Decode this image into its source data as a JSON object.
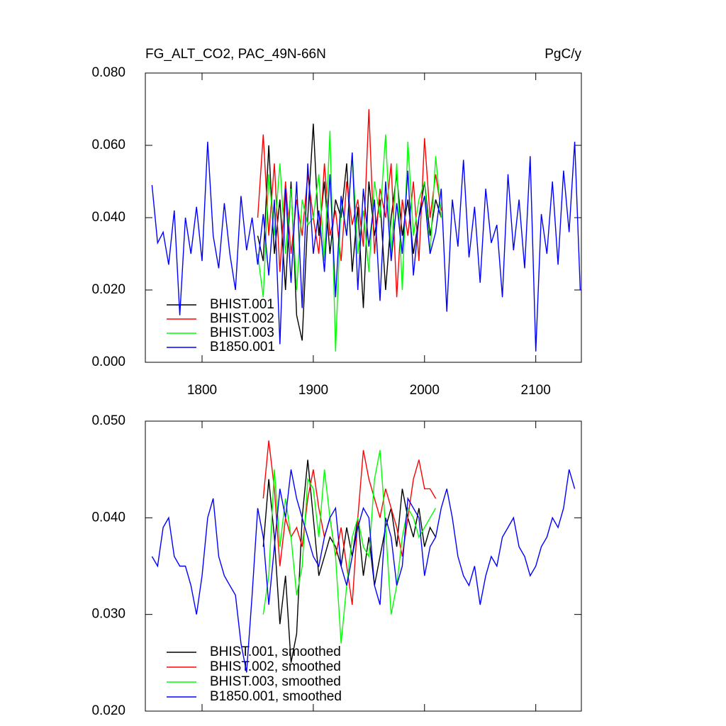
{
  "chart_data": [
    {
      "type": "line",
      "title": "FG_ALT_CO2, PAC_49N-66N",
      "units": "PgC/y",
      "xlim": [
        1749,
        2141
      ],
      "xticks": [
        1800,
        1900,
        2000,
        2100
      ],
      "ylim": [
        0,
        0.08
      ],
      "yticks": [
        {
          "value": 0,
          "label": "0.000"
        },
        {
          "value": 0.02,
          "label": "0.020"
        },
        {
          "value": 0.04,
          "label": "0.040"
        },
        {
          "value": 0.06,
          "label": "0.060"
        },
        {
          "value": 0.08,
          "label": "0.080"
        }
      ],
      "series": [
        {
          "name": "BHIST.001",
          "color": "#000000",
          "x": [
            1850,
            1855,
            1860,
            1865,
            1870,
            1875,
            1880,
            1885,
            1890,
            1895,
            1900,
            1905,
            1910,
            1915,
            1920,
            1925,
            1930,
            1935,
            1940,
            1945,
            1950,
            1955,
            1960,
            1965,
            1970,
            1975,
            1980,
            1985,
            1990,
            1995,
            2000,
            2005,
            2010,
            2015
          ],
          "values": [
            0.035,
            0.028,
            0.06,
            0.03,
            0.045,
            0.02,
            0.05,
            0.013,
            0.006,
            0.04,
            0.066,
            0.035,
            0.05,
            0.03,
            0.045,
            0.04,
            0.055,
            0.025,
            0.043,
            0.015,
            0.05,
            0.035,
            0.045,
            0.02,
            0.04,
            0.052,
            0.035,
            0.045,
            0.03,
            0.04,
            0.05,
            0.035,
            0.045,
            0.04
          ]
        },
        {
          "name": "BHIST.002",
          "color": "#ff0000",
          "x": [
            1850,
            1855,
            1860,
            1865,
            1870,
            1875,
            1880,
            1885,
            1890,
            1895,
            1900,
            1905,
            1910,
            1915,
            1920,
            1925,
            1930,
            1935,
            1940,
            1945,
            1950,
            1955,
            1960,
            1965,
            1970,
            1975,
            1980,
            1985,
            1990,
            1995,
            2000,
            2005,
            2010,
            2015
          ],
          "values": [
            0.04,
            0.063,
            0.035,
            0.055,
            0.025,
            0.05,
            0.03,
            0.045,
            0.035,
            0.052,
            0.04,
            0.03,
            0.055,
            0.035,
            0.042,
            0.028,
            0.05,
            0.038,
            0.045,
            0.032,
            0.07,
            0.03,
            0.048,
            0.04,
            0.055,
            0.018,
            0.045,
            0.035,
            0.05,
            0.028,
            0.062,
            0.04,
            0.052,
            0.042
          ]
        },
        {
          "name": "BHIST.003",
          "color": "#00ff00",
          "x": [
            1850,
            1855,
            1860,
            1865,
            1870,
            1875,
            1880,
            1885,
            1890,
            1895,
            1900,
            1905,
            1910,
            1915,
            1920,
            1925,
            1930,
            1935,
            1940,
            1945,
            1950,
            1955,
            1960,
            1965,
            1970,
            1975,
            1980,
            1985,
            1990,
            1995,
            2000,
            2005,
            2010,
            2015
          ],
          "values": [
            0.03,
            0.018,
            0.052,
            0.035,
            0.055,
            0.03,
            0.048,
            0.02,
            0.045,
            0.038,
            0.04,
            0.052,
            0.028,
            0.064,
            0.003,
            0.045,
            0.035,
            0.058,
            0.03,
            0.042,
            0.025,
            0.05,
            0.04,
            0.063,
            0.03,
            0.055,
            0.02,
            0.061,
            0.035,
            0.045,
            0.05,
            0.03,
            0.057,
            0.04
          ]
        },
        {
          "name": "B1850.001",
          "color": "#0000ff",
          "x": [
            1755,
            1760,
            1765,
            1770,
            1775,
            1780,
            1785,
            1790,
            1795,
            1800,
            1805,
            1810,
            1815,
            1820,
            1825,
            1830,
            1835,
            1840,
            1845,
            1850,
            1855,
            1860,
            1865,
            1870,
            1875,
            1880,
            1885,
            1890,
            1895,
            1900,
            1905,
            1910,
            1915,
            1920,
            1925,
            1930,
            1935,
            1940,
            1945,
            1950,
            1955,
            1960,
            1965,
            1970,
            1975,
            1980,
            1985,
            1990,
            1995,
            2000,
            2005,
            2010,
            2015,
            2020,
            2025,
            2030,
            2035,
            2040,
            2045,
            2050,
            2055,
            2060,
            2065,
            2070,
            2075,
            2080,
            2085,
            2090,
            2095,
            2100,
            2105,
            2110,
            2115,
            2120,
            2125,
            2130,
            2135,
            2140
          ],
          "values": [
            0.049,
            0.033,
            0.036,
            0.027,
            0.042,
            0.013,
            0.04,
            0.03,
            0.043,
            0.028,
            0.061,
            0.035,
            0.026,
            0.044,
            0.03,
            0.02,
            0.046,
            0.031,
            0.04,
            0.027,
            0.041,
            0.024,
            0.045,
            0.005,
            0.048,
            0.022,
            0.05,
            0.015,
            0.055,
            0.03,
            0.042,
            0.025,
            0.052,
            0.018,
            0.046,
            0.035,
            0.058,
            0.02,
            0.048,
            0.032,
            0.045,
            0.017,
            0.05,
            0.028,
            0.044,
            0.03,
            0.053,
            0.024,
            0.04,
            0.046,
            0.03,
            0.036,
            0.048,
            0.014,
            0.045,
            0.032,
            0.056,
            0.029,
            0.043,
            0.022,
            0.048,
            0.033,
            0.038,
            0.018,
            0.052,
            0.031,
            0.045,
            0.026,
            0.057,
            0.003,
            0.041,
            0.03,
            0.05,
            0.027,
            0.053,
            0.036,
            0.061,
            0.02
          ]
        }
      ]
    },
    {
      "type": "line",
      "xlim": [
        1749,
        2141
      ],
      "xticks": [
        1800,
        1900,
        2000,
        2100
      ],
      "ylim": [
        0.02,
        0.05
      ],
      "yticks": [
        {
          "value": 0.02,
          "label": "0.020"
        },
        {
          "value": 0.03,
          "label": "0.030"
        },
        {
          "value": 0.04,
          "label": "0.040"
        },
        {
          "value": 0.05,
          "label": "0.050"
        }
      ],
      "series": [
        {
          "name": "BHIST.001, smoothed",
          "color": "#000000",
          "x": [
            1855,
            1860,
            1865,
            1870,
            1875,
            1880,
            1885,
            1890,
            1895,
            1900,
            1905,
            1910,
            1915,
            1920,
            1925,
            1930,
            1935,
            1940,
            1945,
            1950,
            1955,
            1960,
            1965,
            1970,
            1975,
            1980,
            1985,
            1990,
            1995,
            2000,
            2005,
            2010
          ],
          "values": [
            0.037,
            0.044,
            0.038,
            0.029,
            0.034,
            0.025,
            0.028,
            0.04,
            0.046,
            0.04,
            0.034,
            0.036,
            0.038,
            0.037,
            0.035,
            0.039,
            0.036,
            0.04,
            0.034,
            0.038,
            0.033,
            0.036,
            0.039,
            0.041,
            0.037,
            0.043,
            0.04,
            0.038,
            0.041,
            0.037,
            0.039,
            0.038
          ]
        },
        {
          "name": "BHIST.002, smoothed",
          "color": "#ff0000",
          "x": [
            1855,
            1860,
            1865,
            1870,
            1875,
            1880,
            1885,
            1890,
            1895,
            1900,
            1905,
            1910,
            1915,
            1920,
            1925,
            1930,
            1935,
            1940,
            1945,
            1950,
            1955,
            1960,
            1965,
            1970,
            1975,
            1980,
            1985,
            1990,
            1995,
            2000,
            2005,
            2010
          ],
          "values": [
            0.042,
            0.048,
            0.043,
            0.035,
            0.04,
            0.038,
            0.039,
            0.037,
            0.042,
            0.045,
            0.041,
            0.038,
            0.04,
            0.036,
            0.039,
            0.035,
            0.031,
            0.04,
            0.047,
            0.044,
            0.042,
            0.04,
            0.043,
            0.041,
            0.039,
            0.036,
            0.04,
            0.044,
            0.046,
            0.043,
            0.043,
            0.042
          ]
        },
        {
          "name": "BHIST.003, smoothed",
          "color": "#00ff00",
          "x": [
            1855,
            1860,
            1865,
            1870,
            1875,
            1880,
            1885,
            1890,
            1895,
            1900,
            1905,
            1910,
            1915,
            1920,
            1925,
            1930,
            1935,
            1940,
            1945,
            1950,
            1955,
            1960,
            1965,
            1970,
            1975,
            1980,
            1985,
            1990,
            1995,
            2000,
            2005,
            2010
          ],
          "values": [
            0.03,
            0.034,
            0.045,
            0.037,
            0.042,
            0.038,
            0.032,
            0.035,
            0.044,
            0.043,
            0.038,
            0.045,
            0.04,
            0.036,
            0.027,
            0.033,
            0.038,
            0.04,
            0.037,
            0.036,
            0.044,
            0.047,
            0.039,
            0.03,
            0.033,
            0.038,
            0.041,
            0.04,
            0.038,
            0.039,
            0.04,
            0.041
          ]
        },
        {
          "name": "B1850.001, smoothed",
          "color": "#0000ff",
          "x": [
            1755,
            1760,
            1765,
            1770,
            1775,
            1780,
            1785,
            1790,
            1795,
            1800,
            1805,
            1810,
            1815,
            1820,
            1825,
            1830,
            1835,
            1840,
            1845,
            1850,
            1855,
            1860,
            1865,
            1870,
            1875,
            1880,
            1885,
            1890,
            1895,
            1900,
            1905,
            1910,
            1915,
            1920,
            1925,
            1930,
            1935,
            1940,
            1945,
            1950,
            1955,
            1960,
            1965,
            1970,
            1975,
            1980,
            1985,
            1990,
            1995,
            2000,
            2005,
            2010,
            2015,
            2020,
            2025,
            2030,
            2035,
            2040,
            2045,
            2050,
            2055,
            2060,
            2065,
            2070,
            2075,
            2080,
            2085,
            2090,
            2095,
            2100,
            2105,
            2110,
            2115,
            2120,
            2125,
            2130,
            2135
          ],
          "values": [
            0.036,
            0.035,
            0.039,
            0.04,
            0.036,
            0.035,
            0.035,
            0.033,
            0.03,
            0.034,
            0.04,
            0.042,
            0.036,
            0.034,
            0.033,
            0.032,
            0.027,
            0.024,
            0.032,
            0.041,
            0.038,
            0.031,
            0.037,
            0.043,
            0.04,
            0.045,
            0.042,
            0.04,
            0.038,
            0.036,
            0.035,
            0.038,
            0.04,
            0.041,
            0.035,
            0.033,
            0.036,
            0.039,
            0.041,
            0.04,
            0.033,
            0.031,
            0.04,
            0.038,
            0.033,
            0.035,
            0.042,
            0.041,
            0.04,
            0.034,
            0.037,
            0.038,
            0.041,
            0.043,
            0.04,
            0.036,
            0.034,
            0.033,
            0.035,
            0.031,
            0.034,
            0.036,
            0.035,
            0.038,
            0.039,
            0.04,
            0.037,
            0.036,
            0.034,
            0.035,
            0.037,
            0.038,
            0.04,
            0.039,
            0.041,
            0.045,
            0.043
          ]
        }
      ]
    }
  ]
}
